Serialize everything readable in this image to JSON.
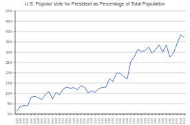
{
  "chart_data": {
    "type": "line",
    "title": "U.S. Popular Vote for President as Percentage of Total Population",
    "x": [
      1824,
      1828,
      1832,
      1836,
      1840,
      1844,
      1848,
      1852,
      1856,
      1860,
      1864,
      1868,
      1872,
      1876,
      1880,
      1884,
      1888,
      1892,
      1896,
      1900,
      1904,
      1908,
      1912,
      1916,
      1920,
      1924,
      1928,
      1932,
      1936,
      1940,
      1944,
      1948,
      1952,
      1956,
      1960,
      1964,
      1968,
      1972,
      1976,
      1980,
      1984,
      1988,
      1992,
      1996,
      2000,
      2004,
      2008,
      2012
    ],
    "values": [
      1.3,
      3.8,
      4.1,
      3.9,
      8.1,
      8.6,
      7.9,
      7.0,
      9.5,
      10.8,
      7.3,
      10.5,
      9.3,
      12.2,
      13.0,
      12.5,
      12.8,
      11.7,
      13.8,
      13.0,
      10.3,
      11.3,
      10.5,
      12.3,
      12.9,
      13.0,
      17.1,
      15.8,
      19.9,
      19.9,
      18.3,
      17.0,
      25.4,
      27.8,
      31.4,
      30.4,
      30.8,
      32.5,
      29.5,
      31.3,
      33.5,
      30.0,
      33.5,
      27.6,
      29.5,
      34.0,
      38.5,
      37.0
    ],
    "color": "#4472C4",
    "xlim": [
      1822,
      2014
    ],
    "xticks": [
      1824,
      1828,
      1832,
      1836,
      1840,
      1844,
      1848,
      1852,
      1856,
      1860,
      1864,
      1868,
      1872,
      1876,
      1880,
      1884,
      1888,
      1892,
      1896,
      1900,
      1904,
      1908,
      1912,
      1916,
      1920,
      1924,
      1928,
      1932,
      1936,
      1940,
      1944,
      1948,
      1952,
      1956,
      1960,
      1964,
      1968,
      1972,
      1976,
      1980,
      1984,
      1988,
      1992,
      1996,
      2000,
      2004,
      2008,
      2012
    ],
    "ylim": [
      0,
      50
    ],
    "yticks": [
      {
        "value": 0,
        "label": "0%"
      },
      {
        "value": 5,
        "label": "5%"
      },
      {
        "value": 10,
        "label": "10%"
      },
      {
        "value": 15,
        "label": "15%"
      },
      {
        "value": 20,
        "label": "20%"
      },
      {
        "value": 25,
        "label": "25%"
      },
      {
        "value": 30,
        "label": "30%"
      },
      {
        "value": 35,
        "label": "35%"
      },
      {
        "value": 40,
        "label": "40%"
      },
      {
        "value": 45,
        "label": "45%"
      },
      {
        "value": 50,
        "label": "50%"
      }
    ],
    "grid": true
  }
}
